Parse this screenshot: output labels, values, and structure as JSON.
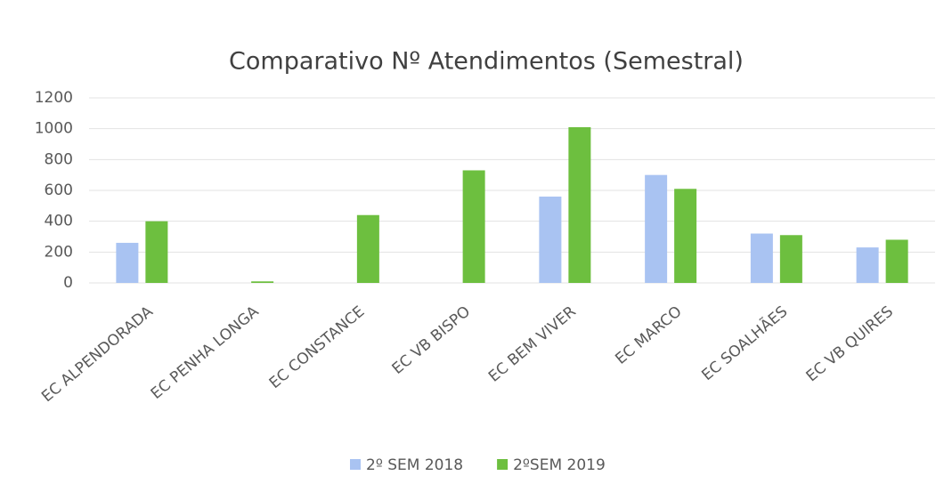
{
  "chart_data": {
    "type": "bar",
    "title": "Comparativo Nº Atendimentos (Semestral)",
    "categories": [
      "EC ALPENDORADA",
      "EC PENHA LONGA",
      "EC CONSTANCE",
      "EC VB BISPO",
      "EC BEM VIVER",
      "EC MARCO",
      "EC SOALHÃES",
      "EC VB QUIRES"
    ],
    "series": [
      {
        "name": "2º SEM 2018",
        "color": "#a9c3f2",
        "values": [
          260,
          0,
          0,
          0,
          560,
          700,
          320,
          230
        ]
      },
      {
        "name": "2ºSEM 2019",
        "color": "#6dbf3f",
        "values": [
          400,
          10,
          440,
          730,
          1010,
          610,
          310,
          280
        ]
      }
    ],
    "ylim": [
      0,
      1200
    ],
    "yticks": [
      0,
      200,
      400,
      600,
      800,
      1000,
      1200
    ],
    "grid": true,
    "legend": "bottom"
  }
}
